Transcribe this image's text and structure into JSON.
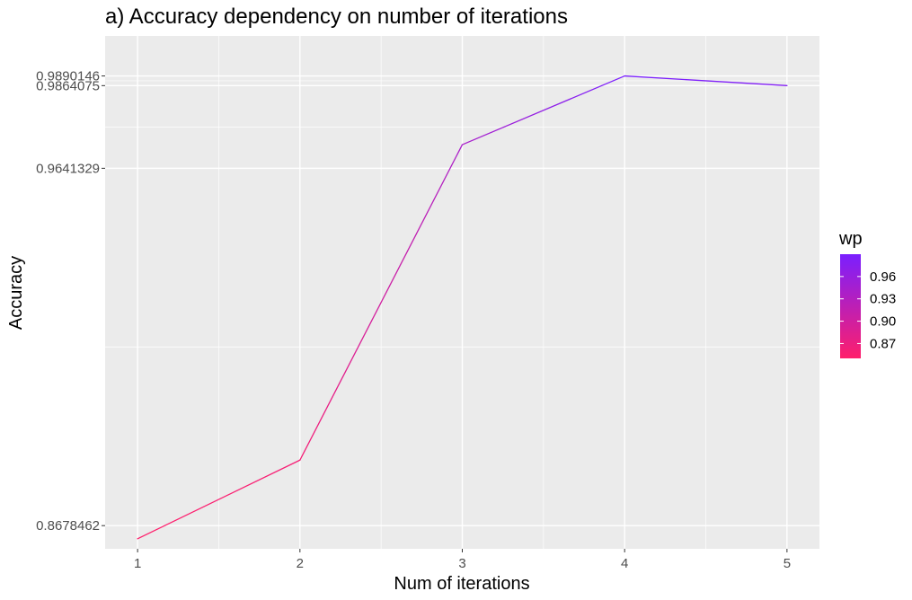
{
  "chart_data": {
    "type": "line",
    "title": "a) Accuracy dependency on number of iterations",
    "xlabel": "Num of iterations",
    "ylabel": "Accuracy",
    "x": [
      1,
      2,
      3,
      4,
      5
    ],
    "x_ticks": [
      "1",
      "2",
      "3",
      "4",
      "5"
    ],
    "y": [
      0.8643,
      0.8855,
      0.9705,
      0.9890146,
      0.9864075
    ],
    "wp": [
      0.85,
      0.86,
      0.94,
      0.99,
      0.98
    ],
    "y_ticks": [
      "0.8678462",
      "0.9641329",
      "0.9864075",
      "0.9890146"
    ],
    "y_tick_values": [
      0.8678462,
      0.9641329,
      0.9864075,
      0.9890146
    ],
    "xlim": [
      0.8,
      5.2
    ],
    "ylim": [
      0.8616,
      0.9998
    ],
    "grid": true,
    "legend": {
      "title": "wp",
      "position": "right",
      "labels": [
        "0.96",
        "0.93",
        "0.90",
        "0.87"
      ],
      "values": [
        0.96,
        0.93,
        0.9,
        0.87
      ],
      "range": [
        0.85,
        0.99
      ],
      "color_low": "#ff1f6b",
      "color_high": "#7a1fff"
    },
    "colors": {
      "panel": "#ebebeb",
      "grid": "#ffffff",
      "tick": "#333333"
    }
  }
}
